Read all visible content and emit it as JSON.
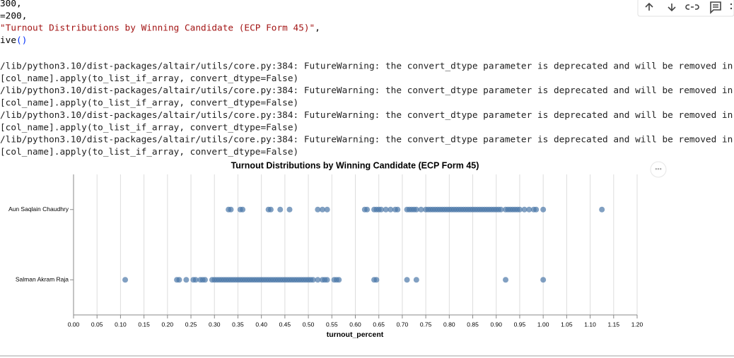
{
  "code": {
    "lines": [
      [
        {
          "text": "300,",
          "color": "#000000"
        }
      ],
      [
        {
          "text": "=200,",
          "color": "#000000"
        }
      ],
      [
        {
          "text": "\"Turnout Distributions by Winning Candidate (ECP Form 45)\"",
          "color": "#a31515"
        },
        {
          "text": ",",
          "color": "#000000"
        }
      ],
      [
        {
          "text": "ive",
          "color": "#000000"
        },
        {
          "text": "()",
          "color": "#0431fa"
        }
      ]
    ]
  },
  "output": {
    "warnings": [
      "/lib/python3.10/dist-packages/altair/utils/core.py:384: FutureWarning: the convert_dtype parameter is deprecated and will be removed in",
      "[col_name].apply(to_list_if_array, convert_dtype=False)",
      "/lib/python3.10/dist-packages/altair/utils/core.py:384: FutureWarning: the convert_dtype parameter is deprecated and will be removed in",
      "[col_name].apply(to_list_if_array, convert_dtype=False)",
      "/lib/python3.10/dist-packages/altair/utils/core.py:384: FutureWarning: the convert_dtype parameter is deprecated and will be removed in",
      "[col_name].apply(to_list_if_array, convert_dtype=False)",
      "/lib/python3.10/dist-packages/altair/utils/core.py:384: FutureWarning: the convert_dtype parameter is deprecated and will be removed in",
      "[col_name].apply(to_list_if_array, convert_dtype=False)"
    ]
  },
  "chart_data": {
    "type": "strip",
    "title": "Turnout Distributions by Winning Candidate (ECP Form 45)",
    "x_label": "turnout_percent",
    "color": "#4c78a8",
    "grid": true,
    "categories": [
      "Aun Saqlain Chaudhry",
      "Salman Akram Raja"
    ],
    "values": [
      [
        0.33,
        0.335,
        0.355,
        0.36,
        0.415,
        0.42,
        0.44,
        0.46,
        0.52,
        0.53,
        0.54,
        0.62,
        0.625,
        0.64,
        0.645,
        0.65,
        0.655,
        0.665,
        0.675,
        0.685,
        0.69,
        0.71,
        0.715,
        0.72,
        0.725,
        0.73,
        0.74,
        0.75,
        0.755,
        0.76,
        0.765,
        0.77,
        0.775,
        0.78,
        0.785,
        0.79,
        0.795,
        0.8,
        0.805,
        0.81,
        0.815,
        0.82,
        0.825,
        0.83,
        0.835,
        0.84,
        0.845,
        0.85,
        0.855,
        0.86,
        0.865,
        0.87,
        0.875,
        0.88,
        0.885,
        0.89,
        0.895,
        0.9,
        0.905,
        0.91,
        0.92,
        0.925,
        0.93,
        0.935,
        0.94,
        0.945,
        0.95,
        0.96,
        0.97,
        0.98,
        0.985,
        1.0,
        1.125
      ],
      [
        0.11,
        0.22,
        0.225,
        0.24,
        0.255,
        0.26,
        0.27,
        0.275,
        0.28,
        0.295,
        0.3,
        0.305,
        0.31,
        0.315,
        0.32,
        0.325,
        0.33,
        0.335,
        0.34,
        0.345,
        0.35,
        0.355,
        0.36,
        0.365,
        0.37,
        0.375,
        0.38,
        0.385,
        0.39,
        0.395,
        0.4,
        0.405,
        0.41,
        0.415,
        0.42,
        0.425,
        0.43,
        0.435,
        0.44,
        0.445,
        0.45,
        0.455,
        0.46,
        0.465,
        0.47,
        0.475,
        0.48,
        0.485,
        0.49,
        0.495,
        0.5,
        0.505,
        0.51,
        0.52,
        0.53,
        0.535,
        0.54,
        0.555,
        0.56,
        0.565,
        0.64,
        0.645,
        0.71,
        0.73,
        0.92,
        1.0
      ]
    ],
    "xlim": [
      0,
      1.2
    ],
    "xticks": [
      {
        "value": 0,
        "label": "0.00"
      },
      0.05,
      {
        "value": 0.1,
        "label": "0.10"
      },
      0.15,
      {
        "value": 0.2,
        "label": "0.20"
      },
      0.25,
      {
        "value": 0.3,
        "label": "0.30"
      },
      0.35,
      {
        "value": 0.4,
        "label": "0.40"
      },
      0.45,
      {
        "value": 0.5,
        "label": "0.50"
      },
      0.55,
      {
        "value": 0.6,
        "label": "0.60"
      },
      0.65,
      {
        "value": 0.7,
        "label": "0.70"
      },
      0.75,
      {
        "value": 0.8,
        "label": "0.80"
      },
      0.85,
      {
        "value": 0.9,
        "label": "0.90"
      },
      0.95,
      {
        "value": 1,
        "label": "1.00"
      },
      1.05,
      {
        "value": 1.1,
        "label": "1.10"
      },
      1.15,
      {
        "value": 1.2,
        "label": "1.20"
      }
    ]
  }
}
